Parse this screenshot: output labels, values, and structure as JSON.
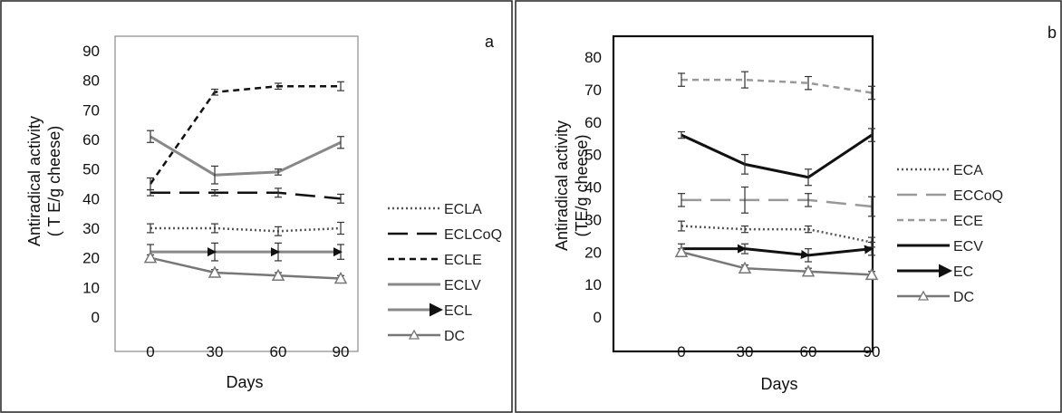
{
  "chart_data": [
    {
      "type": "line",
      "panel_label": "a",
      "ylabel_lines": [
        "Antiradical activity",
        "( T E/g cheese)"
      ],
      "xlabel": "Days",
      "x": [
        0,
        30,
        60,
        90
      ],
      "x_ticks": [
        "0",
        "30",
        "60",
        "90"
      ],
      "y_ticks": [
        "0",
        "10",
        "20",
        "30",
        "40",
        "50",
        "60",
        "70",
        "80",
        "90"
      ],
      "ylim": [
        0,
        90
      ],
      "legend_position": "right",
      "series": [
        {
          "name": "ECLA",
          "values": [
            30,
            30,
            29,
            30
          ],
          "errors": [
            1.5,
            1.5,
            1.5,
            2
          ],
          "color": "#555555",
          "style": "dotted"
        },
        {
          "name": "ECLCoQ",
          "values": [
            42,
            42,
            42,
            40
          ],
          "errors": [
            1,
            1,
            1.5,
            1.5
          ],
          "color": "#111111",
          "style": "longdash"
        },
        {
          "name": "ECLE",
          "values": [
            45,
            76,
            78,
            78
          ],
          "errors": [
            2,
            1,
            1,
            1.5
          ],
          "color": "#111111",
          "style": "dashed"
        },
        {
          "name": "ECLV",
          "values": [
            61,
            48,
            49,
            59
          ],
          "errors": [
            2,
            3,
            1,
            2
          ],
          "color": "#888888",
          "style": "solid"
        },
        {
          "name": "ECL",
          "values": [
            22,
            22,
            22,
            22
          ],
          "errors": [
            2.5,
            3,
            3,
            2.5
          ],
          "color": "#888888",
          "style": "arrow"
        },
        {
          "name": "DC",
          "values": [
            20,
            15,
            14,
            13
          ],
          "errors": [
            1,
            1,
            1,
            1
          ],
          "color": "#777777",
          "style": "triangle"
        }
      ]
    },
    {
      "type": "line",
      "panel_label": "b",
      "ylabel_lines": [
        "Antiradical activity",
        "(TE/g cheese)"
      ],
      "xlabel": "Days",
      "x": [
        0,
        30,
        60,
        90
      ],
      "x_ticks": [
        "0",
        "30",
        "60",
        "90"
      ],
      "y_ticks": [
        "0",
        "10",
        "20",
        "30",
        "40",
        "50",
        "60",
        "70",
        "80"
      ],
      "ylim": [
        0,
        80
      ],
      "legend_position": "right",
      "series": [
        {
          "name": "ECA",
          "values": [
            28,
            27,
            27,
            23
          ],
          "errors": [
            1.5,
            1,
            1,
            1.5
          ],
          "color": "#555555",
          "style": "dotted"
        },
        {
          "name": "ECCoQ",
          "values": [
            36,
            36,
            36,
            34
          ],
          "errors": [
            2,
            4,
            2,
            3
          ],
          "color": "#999999",
          "style": "longdash"
        },
        {
          "name": "ECE",
          "values": [
            73,
            73,
            72,
            69
          ],
          "errors": [
            2,
            2.5,
            2,
            2
          ],
          "color": "#999999",
          "style": "dashed"
        },
        {
          "name": "ECV",
          "values": [
            56,
            47,
            43,
            56
          ],
          "errors": [
            1,
            3,
            2.5,
            2
          ],
          "color": "#111111",
          "style": "solid"
        },
        {
          "name": "EC",
          "values": [
            21,
            21,
            19,
            21
          ],
          "errors": [
            1.5,
            1.5,
            2,
            2
          ],
          "color": "#111111",
          "style": "arrow"
        },
        {
          "name": "DC",
          "values": [
            20,
            15,
            14,
            13
          ],
          "errors": [
            1,
            1,
            1,
            1
          ],
          "color": "#777777",
          "style": "triangle"
        }
      ]
    }
  ]
}
